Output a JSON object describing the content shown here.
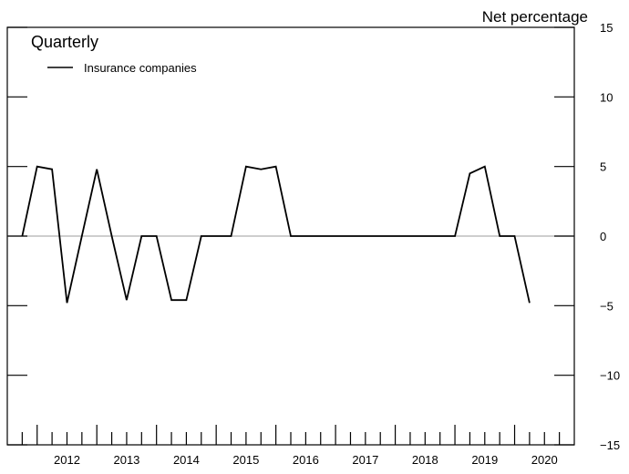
{
  "chart_data": {
    "type": "line",
    "frequency_label": "Quarterly",
    "y_unit_label": "Net percentage",
    "legend": [
      {
        "name": "Insurance companies",
        "color": "#000000"
      }
    ],
    "legend_placement": "top-left",
    "ylim": [
      -15,
      15
    ],
    "y_ticks": [
      15,
      10,
      5,
      0,
      -5,
      -10,
      -15
    ],
    "y_tick_labels": [
      "15",
      "10",
      "5",
      "0",
      "−5",
      "−10",
      "−15"
    ],
    "x_tick_labels": [
      "2012",
      "2013",
      "2014",
      "2015",
      "2016",
      "2017",
      "2018",
      "2019",
      "2020"
    ],
    "x_range": [
      "2011-Q3",
      "2020-Q4"
    ],
    "zero_line_color": "#b0b0b0",
    "series": [
      {
        "name": "Insurance companies",
        "color": "#000000",
        "points": [
          {
            "x": "2011-Q4",
            "y": 0
          },
          {
            "x": "2012-Q1",
            "y": 5
          },
          {
            "x": "2012-Q2",
            "y": 4.8
          },
          {
            "x": "2012-Q3",
            "y": -4.8
          },
          {
            "x": "2012-Q4",
            "y": 0
          },
          {
            "x": "2013-Q1",
            "y": 4.8
          },
          {
            "x": "2013-Q2",
            "y": 0
          },
          {
            "x": "2013-Q3",
            "y": -4.6
          },
          {
            "x": "2013-Q4",
            "y": 0
          },
          {
            "x": "2014-Q1",
            "y": 0
          },
          {
            "x": "2014-Q2",
            "y": -4.6
          },
          {
            "x": "2014-Q3",
            "y": -4.6
          },
          {
            "x": "2014-Q4",
            "y": 0
          },
          {
            "x": "2015-Q1",
            "y": 0
          },
          {
            "x": "2015-Q2",
            "y": 0
          },
          {
            "x": "2015-Q3",
            "y": 5
          },
          {
            "x": "2015-Q4",
            "y": 4.8
          },
          {
            "x": "2016-Q1",
            "y": 5
          },
          {
            "x": "2016-Q2",
            "y": 0
          },
          {
            "x": "2016-Q3",
            "y": 0
          },
          {
            "x": "2016-Q4",
            "y": 0
          },
          {
            "x": "2017-Q1",
            "y": 0
          },
          {
            "x": "2017-Q2",
            "y": 0
          },
          {
            "x": "2017-Q3",
            "y": 0
          },
          {
            "x": "2017-Q4",
            "y": 0
          },
          {
            "x": "2018-Q1",
            "y": 0
          },
          {
            "x": "2018-Q2",
            "y": 0
          },
          {
            "x": "2018-Q3",
            "y": 0
          },
          {
            "x": "2018-Q4",
            "y": 0
          },
          {
            "x": "2019-Q1",
            "y": 0
          },
          {
            "x": "2019-Q2",
            "y": 4.5
          },
          {
            "x": "2019-Q3",
            "y": 5
          },
          {
            "x": "2019-Q4",
            "y": 0
          },
          {
            "x": "2020-Q1",
            "y": 0
          },
          {
            "x": "2020-Q2",
            "y": -4.8
          }
        ]
      }
    ]
  }
}
